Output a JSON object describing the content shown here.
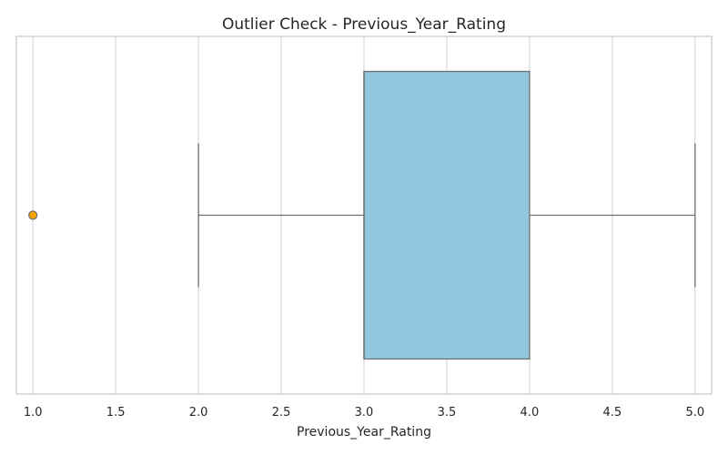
{
  "chart_data": {
    "type": "boxplot",
    "orientation": "horizontal",
    "title": "Outlier Check - Previous_Year_Rating",
    "xlabel": "Previous_Year_Rating",
    "ylabel": "",
    "xlim": [
      0.9,
      5.1
    ],
    "grid": true,
    "xticks": [
      1.0,
      1.5,
      2.0,
      2.5,
      3.0,
      3.5,
      4.0,
      4.5,
      5.0
    ],
    "xtick_labels": [
      "1.0",
      "1.5",
      "2.0",
      "2.5",
      "3.0",
      "3.5",
      "4.0",
      "4.5",
      "5.0"
    ],
    "box": {
      "whisker_low": 2.0,
      "q1": 3.0,
      "median": 3.0,
      "q3": 4.0,
      "whisker_high": 5.0
    },
    "outliers": [
      1.0
    ],
    "colors": {
      "box_fill": "#92C8DF",
      "box_edge": "#6e6e6e",
      "outlier_fill": "#F5A300",
      "grid": "#d9d9d9",
      "frame": "#cccccc"
    }
  }
}
